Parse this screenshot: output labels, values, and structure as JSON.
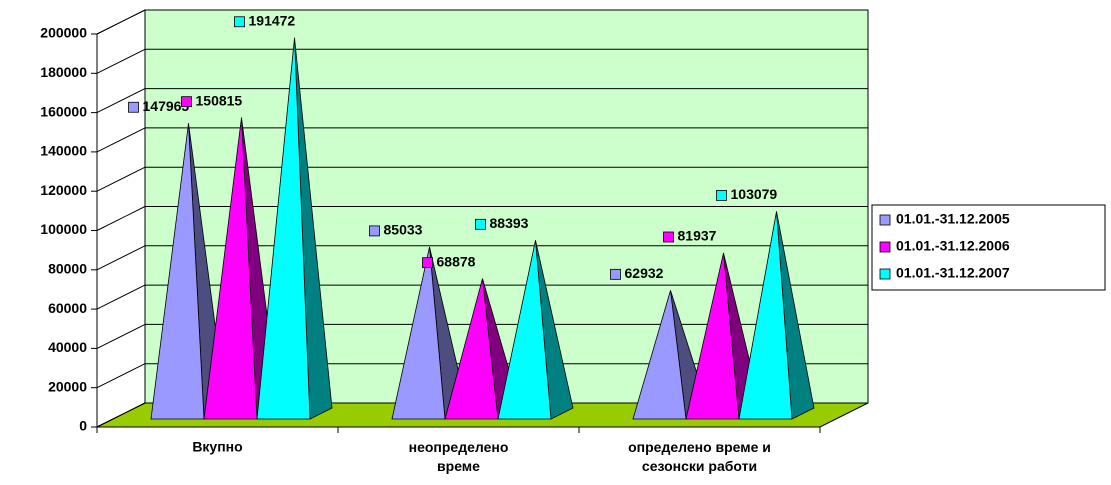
{
  "chart_data": {
    "type": "pyramid3d",
    "categories": [
      "Вкупно",
      "неопределено\nвреме",
      "определено време и\nсезонски работи"
    ],
    "series": [
      {
        "name": "01.01.-31.12.2005",
        "color": "#9999ff",
        "side": "#4d4d80",
        "values": [
          147965,
          85033,
          62932
        ]
      },
      {
        "name": "01.01.-31.12.2006",
        "color": "#ff00ff",
        "side": "#800080",
        "values": [
          150815,
          68878,
          81937
        ]
      },
      {
        "name": "01.01.-31.12.2007",
        "color": "#00ffff",
        "side": "#008080",
        "values": [
          191472,
          88393,
          103079
        ]
      }
    ],
    "ylim": [
      0,
      200000
    ],
    "yticks": [
      0,
      20000,
      40000,
      60000,
      80000,
      100000,
      120000,
      140000,
      160000,
      180000,
      200000
    ],
    "grid": true,
    "wall_color": "#ccffcc",
    "floor_color": "#99cc00",
    "legend": "right"
  }
}
